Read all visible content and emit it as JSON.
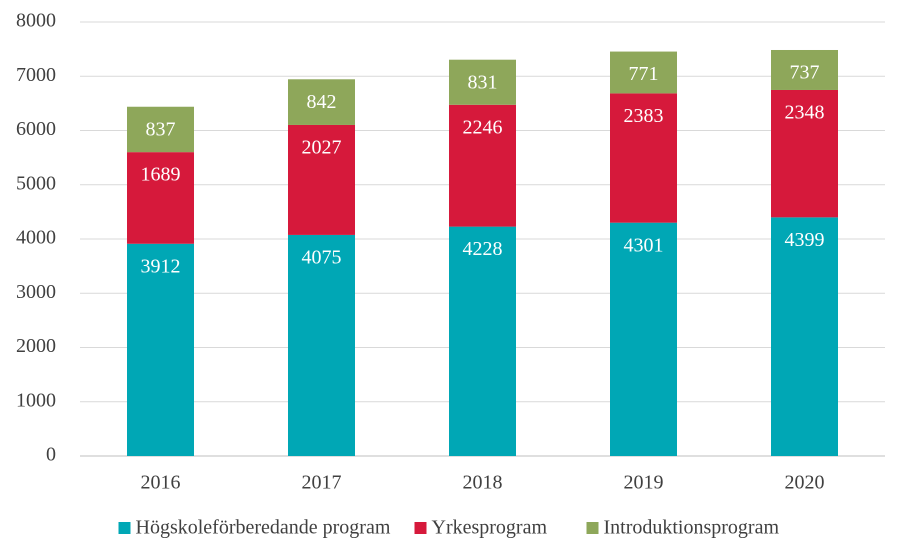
{
  "chart_data": {
    "type": "stacked_bar",
    "categories": [
      "2016",
      "2017",
      "2018",
      "2019",
      "2020"
    ],
    "series": [
      {
        "name": "Högskoleförberedande program",
        "color": "#00a7b5",
        "values": [
          3912,
          4075,
          4228,
          4301,
          4399
        ]
      },
      {
        "name": "Yrkesprogram",
        "color": "#d6193b",
        "values": [
          1689,
          2027,
          2246,
          2383,
          2348
        ]
      },
      {
        "name": "Introduktionsprogram",
        "color": "#8ea75a",
        "values": [
          837,
          842,
          831,
          771,
          737
        ]
      }
    ],
    "ylim": [
      0,
      8000
    ],
    "yticks": [
      0,
      1000,
      2000,
      3000,
      4000,
      5000,
      6000,
      7000,
      8000
    ],
    "grid": true,
    "legend": "bottom"
  }
}
